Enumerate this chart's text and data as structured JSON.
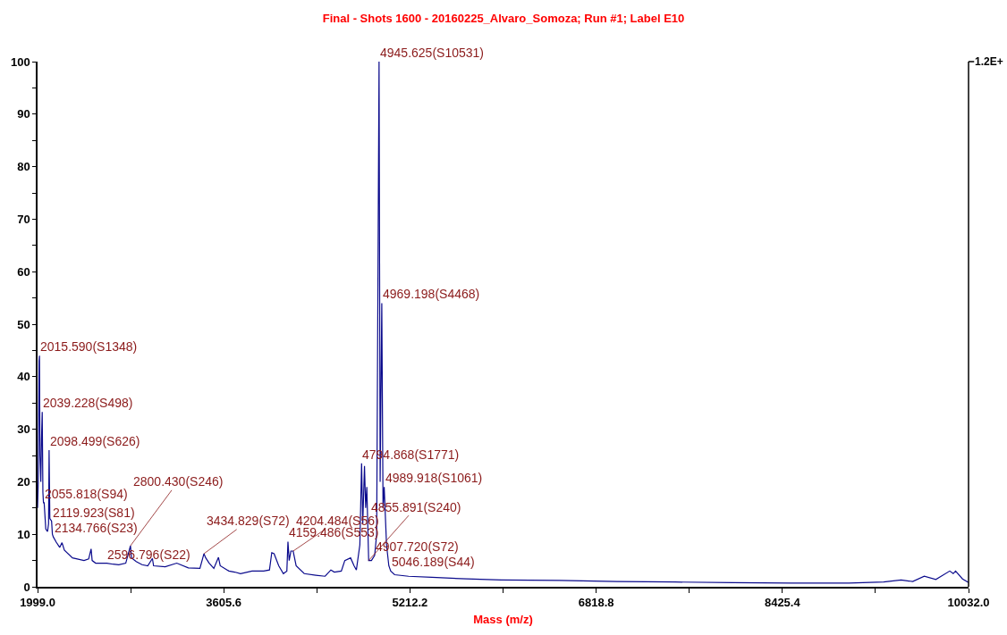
{
  "chart_data": {
    "type": "line",
    "title": "Final - Shots 1600 - 20160225_Alvaro_Somoza; Run #1; Label E10",
    "xlabel": "Mass (m/z)",
    "x": [
      1999.0,
      2005,
      2012,
      2015.59,
      2020,
      2027,
      2033,
      2039.228,
      2045,
      2050,
      2055.818,
      2070,
      2085,
      2094,
      2098.499,
      2105,
      2119.923,
      2127,
      2134.766,
      2160,
      2190,
      2210,
      2230,
      2300,
      2400,
      2440,
      2461,
      2470,
      2500,
      2596.796,
      2650,
      2700,
      2760,
      2800.43,
      2810,
      2850,
      2900,
      2950,
      2990,
      3000,
      3100,
      3200,
      3300,
      3400,
      3434.829,
      3450,
      3480,
      3520,
      3560,
      3575,
      3650,
      3700,
      3750,
      3850,
      3950,
      4000,
      4020,
      4040,
      4080,
      4120,
      4150,
      4159.486,
      4170,
      4185,
      4204.484,
      4230,
      4300,
      4400,
      4480,
      4530,
      4560,
      4620,
      4650,
      4700,
      4730,
      4750,
      4780,
      4794.868,
      4805,
      4820,
      4830,
      4840,
      4855.891,
      4880,
      4907.72,
      4925,
      4945.625,
      4955,
      4969.198,
      4980,
      4989.918,
      5010,
      5030,
      5046.189,
      5080,
      5200,
      5400,
      5700,
      6000,
      6500,
      7000,
      7500,
      8000,
      8500,
      9000,
      9300,
      9450,
      9550,
      9650,
      9750,
      9870,
      9900,
      9920,
      9980,
      10032
    ],
    "series": [
      {
        "color": "#0a0a8c",
        "values": [
          15,
          20,
          43,
          44,
          25,
          20,
          28,
          33.3,
          18,
          16,
          16,
          11,
          10.5,
          12,
          26,
          13,
          12.5,
          10,
          9.5,
          8.5,
          7.5,
          8.4,
          7,
          5.5,
          5,
          5.3,
          7.2,
          5,
          4.5,
          4.5,
          4.3,
          4.2,
          4.5,
          7.8,
          5.5,
          4.8,
          4.2,
          4,
          5.4,
          4,
          3.8,
          4.5,
          3.6,
          3.5,
          6.3,
          5.5,
          4.5,
          3.5,
          5.6,
          4,
          3,
          2.8,
          2.5,
          3,
          3,
          3.2,
          6.5,
          6.3,
          4,
          2.5,
          3,
          8.6,
          5,
          6.8,
          6.8,
          4,
          2.5,
          2.2,
          2,
          3.2,
          2.8,
          3,
          5,
          5.5,
          4,
          3.2,
          8,
          23.5,
          12,
          23,
          15,
          19,
          5,
          5,
          6,
          10,
          100,
          20,
          54,
          15,
          19,
          8,
          4,
          3,
          2.3,
          2,
          1.8,
          1.5,
          1.3,
          1.2,
          1,
          0.9,
          0.8,
          0.7,
          0.7,
          0.9,
          1.3,
          1,
          2,
          1.4,
          3,
          2.5,
          3,
          1.5,
          0.8
        ]
      }
    ],
    "xlim": [
      1999.0,
      10032.0
    ],
    "xticks": [
      {
        "value": 1999.0,
        "label": "1999.0"
      },
      {
        "value": 2802.3,
        "label": null
      },
      {
        "value": 3605.6,
        "label": "3605.6"
      },
      {
        "value": 4408.9,
        "label": null
      },
      {
        "value": 5212.2,
        "label": "5212.2"
      },
      {
        "value": 6015.5,
        "label": null
      },
      {
        "value": 6818.8,
        "label": "6818.8"
      },
      {
        "value": 7622.1,
        "label": null
      },
      {
        "value": 8425.4,
        "label": "8425.4"
      },
      {
        "value": 9228.7,
        "label": null
      },
      {
        "value": 10032.0,
        "label": "10032.0"
      }
    ],
    "ylim": [
      0,
      100
    ],
    "yticks": [
      0,
      {
        "value": 5,
        "label": null
      },
      10,
      {
        "value": 15,
        "label": null
      },
      20,
      {
        "value": 25,
        "label": null
      },
      30,
      {
        "value": 35,
        "label": null
      },
      40,
      {
        "value": 45,
        "label": null
      },
      50,
      {
        "value": 55,
        "label": null
      },
      60,
      {
        "value": 65,
        "label": null
      },
      70,
      {
        "value": 75,
        "label": null
      },
      80,
      {
        "value": 85,
        "label": null
      },
      90,
      {
        "value": 95,
        "label": null
      },
      100
    ],
    "marker": "none",
    "line_style": "solid",
    "annotations": [
      {
        "text": "4945.625(S10531)",
        "x": 4945.625,
        "y": 100
      },
      {
        "text": "4969.198(S4468)",
        "x": 4969.198,
        "y": 54
      },
      {
        "text": "2015.590(S1348)",
        "x": 2015.59,
        "y": 44
      },
      {
        "text": "2039.228(S498)",
        "x": 2039.228,
        "y": 33.3
      },
      {
        "text": "2098.499(S626)",
        "x": 2098.499,
        "y": 26
      },
      {
        "text": "4794.868(S1771)",
        "x": 4794.868,
        "y": 23.5
      },
      {
        "text": "4989.918(S1061)",
        "x": 4989.918,
        "y": 19
      },
      {
        "text": "2055.818(S94)",
        "x": 2055.818,
        "y": 16
      },
      {
        "text": "2119.923(S81)",
        "x": 2119.923,
        "y": 12.5
      },
      {
        "text": "2134.766(S23)",
        "x": 2134.766,
        "y": 9.5
      },
      {
        "text": "4159.486(S553)",
        "x": 4159.486,
        "y": 8.6
      },
      {
        "text": "2800.430(S246)",
        "x": 2800.43,
        "y": 7.8
      },
      {
        "text": "4204.484(S56)",
        "x": 4204.484,
        "y": 6.8
      },
      {
        "text": "3434.829(S72)",
        "x": 3434.829,
        "y": 6.3
      },
      {
        "text": "4907.720(S72)",
        "x": 4907.72,
        "y": 6
      },
      {
        "text": "4855.891(S240)",
        "x": 4855.891,
        "y": 5
      },
      {
        "text": "2596.796(S22)",
        "x": 2596.796,
        "y": 4.5
      },
      {
        "text": "5046.189(S44)",
        "x": 5046.189,
        "y": 3
      },
      "1.2E+"
    ]
  }
}
